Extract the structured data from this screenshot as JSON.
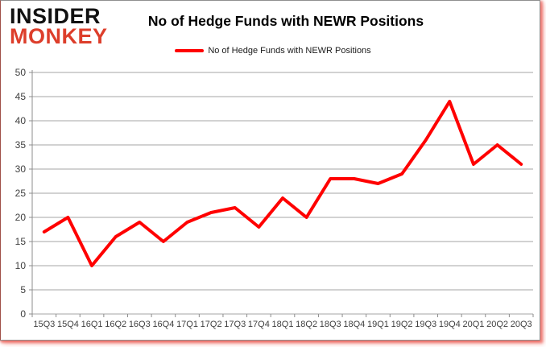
{
  "header": {
    "logo_line1": "INSIDER",
    "logo_line2": "MONKEY",
    "title": "No of Hedge Funds with NEWR Positions"
  },
  "legend": {
    "label": "No of Hedge Funds with NEWR Positions",
    "swatch_color": "#ff0000"
  },
  "colors": {
    "series": "#ff0000",
    "gridline": "#a6a6a6",
    "axis": "#8c8c8c",
    "tick_label": "#404040",
    "logo_black": "#111111",
    "logo_red": "#dd3e2b",
    "frame_glow": "#eb5046"
  },
  "chart_data": {
    "type": "line",
    "title": "No of Hedge Funds with NEWR Positions",
    "categories": [
      "15Q3",
      "15Q4",
      "16Q1",
      "16Q2",
      "16Q3",
      "16Q4",
      "17Q1",
      "17Q2",
      "17Q3",
      "17Q4",
      "18Q1",
      "18Q2",
      "18Q3",
      "18Q4",
      "19Q1",
      "19Q2",
      "19Q3",
      "19Q4",
      "20Q1",
      "20Q2",
      "20Q3"
    ],
    "series": [
      {
        "name": "No of Hedge Funds with NEWR Positions",
        "color": "#ff0000",
        "values": [
          17,
          20,
          10,
          16,
          19,
          15,
          19,
          21,
          22,
          18,
          24,
          20,
          28,
          28,
          27,
          29,
          36,
          44,
          31,
          35,
          31
        ]
      }
    ],
    "xlabel": "",
    "ylabel": "",
    "ylim": [
      0,
      50
    ],
    "ytick_step": 5,
    "grid": true,
    "legend_position": "top-center"
  }
}
